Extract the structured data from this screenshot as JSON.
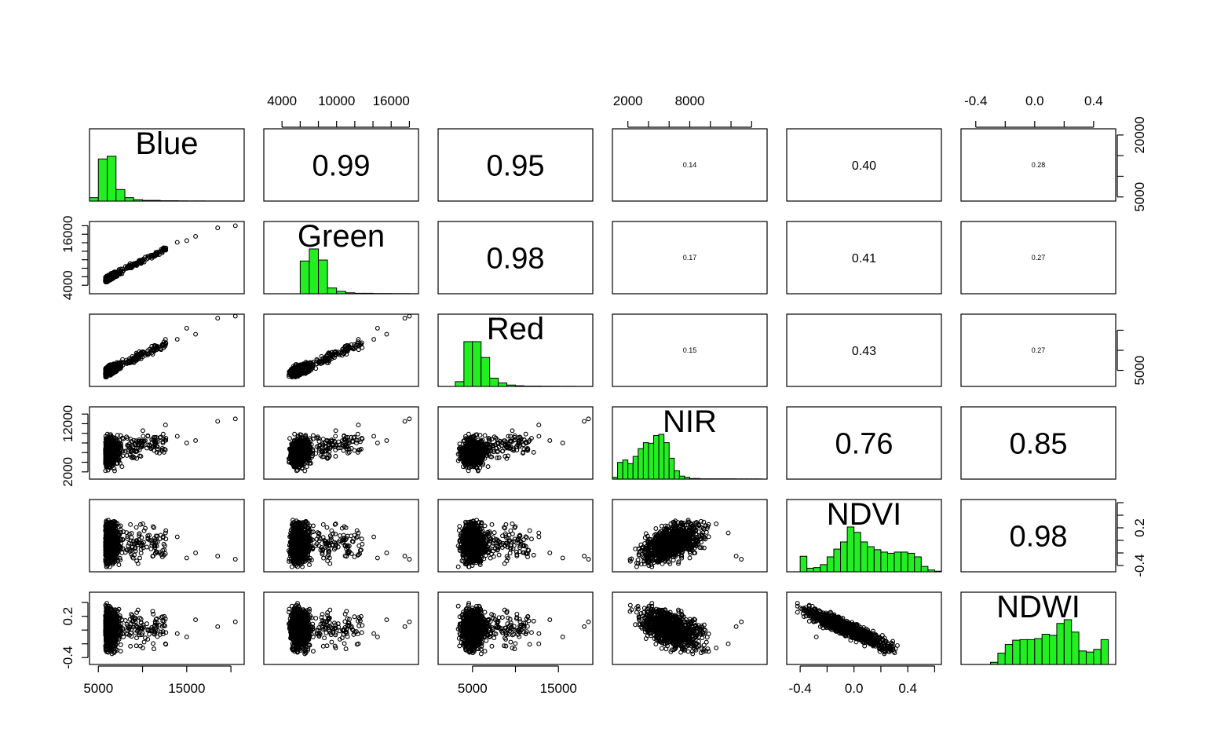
{
  "chart_data": {
    "type": "scatter",
    "variables": [
      "Blue",
      "Green",
      "Red",
      "NIR",
      "NDVI",
      "NDWI"
    ],
    "diagonal": "histogram",
    "upper_panel": "correlation",
    "lower_panel": "scatter",
    "histogram_color": "#22ee22",
    "point_color": "#000000",
    "ranges": [
      [
        4000,
        21500
      ],
      [
        2000,
        19000
      ],
      [
        1000,
        19000
      ],
      [
        500,
        15500
      ],
      [
        -0.5,
        0.65
      ],
      [
        -0.5,
        0.55
      ]
    ],
    "ticks": {
      "Blue": [
        5000,
        10000,
        15000,
        20000
      ],
      "Green": [
        4000,
        6000,
        8000,
        10000,
        12000,
        14000,
        16000,
        18000
      ],
      "Red": [
        5000,
        10000,
        15000
      ],
      "NIR": [
        2000,
        4000,
        6000,
        8000,
        10000,
        12000,
        14000
      ],
      "NDVI": [
        -0.4,
        -0.2,
        0.0,
        0.2,
        0.4,
        0.6
      ],
      "NDWI": [
        -0.4,
        -0.2,
        0.0,
        0.2,
        0.4
      ]
    },
    "tick_labels": {
      "bottom_0": [
        {
          "v": 5000,
          "t": "5000"
        },
        {
          "v": 15000,
          "t": "15000"
        }
      ],
      "bottom_2": [
        {
          "v": 5000,
          "t": "5000"
        },
        {
          "v": 15000,
          "t": "15000"
        }
      ],
      "bottom_4": [
        {
          "v": -0.4,
          "t": "-0.4"
        },
        {
          "v": 0.0,
          "t": "0.0"
        },
        {
          "v": 0.4,
          "t": "0.4"
        }
      ],
      "top_1": [
        {
          "v": 4000,
          "t": "4000"
        },
        {
          "v": 10000,
          "t": "10000"
        },
        {
          "v": 16000,
          "t": "16000"
        }
      ],
      "top_3": [
        {
          "v": 2000,
          "t": "2000"
        },
        {
          "v": 8000,
          "t": "8000"
        }
      ],
      "top_5": [
        {
          "v": -0.4,
          "t": "-0.4"
        },
        {
          "v": 0.0,
          "t": "0.0"
        },
        {
          "v": 0.4,
          "t": "0.4"
        }
      ],
      "left_1": [
        {
          "v": 4000,
          "t": "4000"
        },
        {
          "v": 16000,
          "t": "16000"
        }
      ],
      "left_3": [
        {
          "v": 2000,
          "t": "2000"
        },
        {
          "v": 12000,
          "t": "12000"
        }
      ],
      "left_5": [
        {
          "v": -0.4,
          "t": "-0.4"
        },
        {
          "v": 0.2,
          "t": "0.2"
        }
      ],
      "right_0": [
        {
          "v": 5000,
          "t": "5000"
        },
        {
          "v": 20000,
          "t": "20000"
        }
      ],
      "right_2": [
        {
          "v": 5000,
          "t": "5000"
        }
      ],
      "right_4": [
        {
          "v": -0.4,
          "t": "-0.4"
        },
        {
          "v": 0.2,
          "t": "0.2"
        }
      ]
    },
    "correlations": [
      {
        "row": 0,
        "col": 1,
        "value": "0.99"
      },
      {
        "row": 0,
        "col": 2,
        "value": "0.95"
      },
      {
        "row": 0,
        "col": 3,
        "value": "0.14"
      },
      {
        "row": 0,
        "col": 4,
        "value": "0.40"
      },
      {
        "row": 0,
        "col": 5,
        "value": "0.28"
      },
      {
        "row": 1,
        "col": 2,
        "value": "0.98"
      },
      {
        "row": 1,
        "col": 3,
        "value": "0.17"
      },
      {
        "row": 1,
        "col": 4,
        "value": "0.41"
      },
      {
        "row": 1,
        "col": 5,
        "value": "0.27"
      },
      {
        "row": 2,
        "col": 3,
        "value": "0.15"
      },
      {
        "row": 2,
        "col": 4,
        "value": "0.43"
      },
      {
        "row": 2,
        "col": 5,
        "value": "0.27"
      },
      {
        "row": 3,
        "col": 4,
        "value": "0.76"
      },
      {
        "row": 3,
        "col": 5,
        "value": "0.85"
      },
      {
        "row": 4,
        "col": 5,
        "value": "0.98"
      }
    ],
    "histograms": [
      {
        "variable": "Blue",
        "bin_width": 1000,
        "bin_start": 4000,
        "counts": [
          5,
          62,
          66,
          17,
          5,
          2,
          1,
          1,
          0.5,
          0.5,
          0.3,
          0.2,
          0.2,
          0.1,
          0.1,
          0.1,
          0.1
        ]
      },
      {
        "variable": "Green",
        "bin_width": 1000,
        "bin_start": 2000,
        "counts": [
          0,
          0,
          0,
          0,
          68,
          93,
          70,
          12,
          5,
          2,
          1,
          1,
          0.5,
          0.5,
          0.3,
          0.3,
          0.1
        ]
      },
      {
        "variable": "Red",
        "bin_width": 1000,
        "bin_start": 1000,
        "counts": [
          0,
          0,
          7,
          65,
          65,
          42,
          12,
          5,
          2,
          1,
          0.5,
          0.5,
          0.3,
          0.3,
          0.2,
          0.2,
          0.1,
          0.1
        ]
      },
      {
        "variable": "NIR",
        "bin_width": 500,
        "bin_start": 500,
        "counts": [
          3,
          28,
          32,
          26,
          38,
          51,
          61,
          60,
          73,
          75,
          61,
          35,
          14,
          5,
          3,
          1,
          1,
          0.5,
          0.5,
          0.5,
          0.5,
          0.5,
          0.5,
          0.5,
          0.3,
          0.3,
          0.3,
          0.3,
          0.3
        ]
      },
      {
        "variable": "NDVI",
        "bin_width": 0.05,
        "bin_start": -0.45,
        "counts": [
          0,
          26,
          6,
          7,
          12,
          25,
          38,
          50,
          75,
          66,
          50,
          42,
          37,
          33,
          31,
          33,
          33,
          31,
          25,
          9,
          3,
          1
        ]
      },
      {
        "variable": "NDWI",
        "bin_width": 0.05,
        "bin_start": -0.5,
        "counts": [
          0,
          0,
          0,
          0,
          4,
          21,
          37,
          45,
          46,
          46,
          48,
          56,
          54,
          76,
          83,
          60,
          25,
          23,
          28,
          46
        ]
      }
    ]
  }
}
